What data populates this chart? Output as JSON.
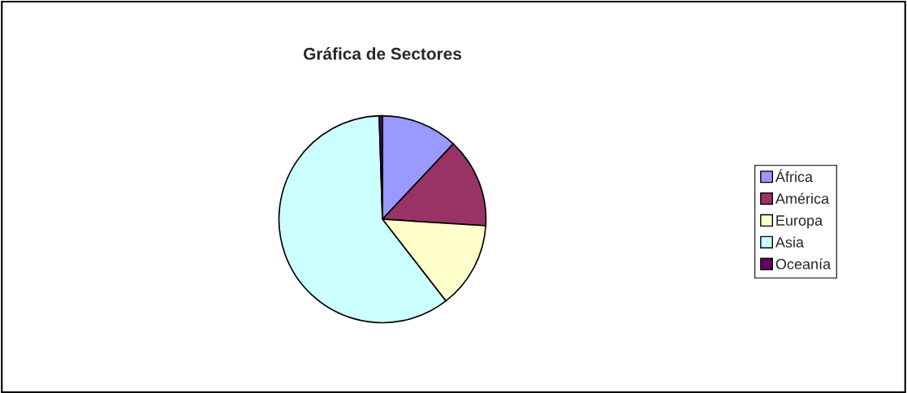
{
  "chart_data": {
    "type": "pie",
    "title": "Gráfica de Sectores",
    "categories": [
      "África",
      "América",
      "Europa",
      "Asia",
      "Oceanía"
    ],
    "values": [
      12,
      14,
      13.5,
      60,
      0.5
    ],
    "colors": [
      "#9999ff",
      "#993366",
      "#ffffcc",
      "#ccffff",
      "#660066"
    ],
    "legend": "right"
  }
}
